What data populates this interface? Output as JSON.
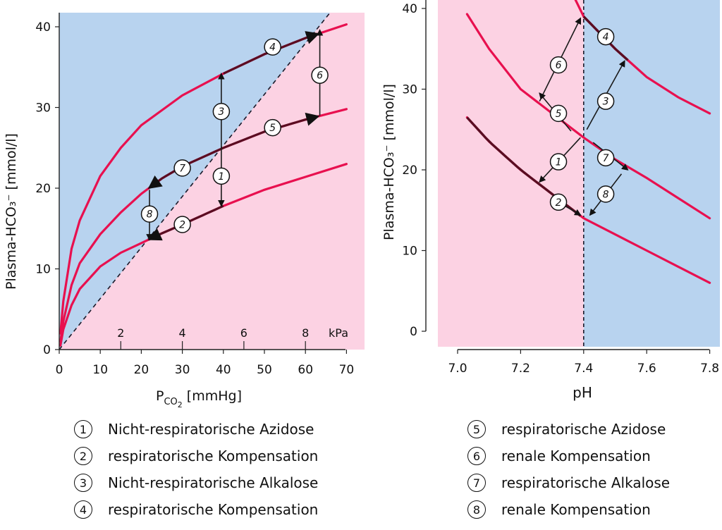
{
  "chart_data": [
    {
      "type": "line",
      "xlabel_main": "P",
      "xlabel_sub": "CO",
      "xlabel_subsub": "2",
      "xlabel_unit": "[mmHg]",
      "ylabel": "Plasma-HCO₃⁻ [mmol/l]",
      "xlim": [
        0,
        75
      ],
      "ylim": [
        0,
        41
      ],
      "x_ticks": [
        0,
        10,
        20,
        30,
        40,
        50,
        60,
        70
      ],
      "y_ticks": [
        0,
        10,
        20,
        30,
        40
      ],
      "kpa_ticks": [
        {
          "label": "2",
          "mmhg": 15
        },
        {
          "label": "4",
          "mmhg": 30
        },
        {
          "label": "6",
          "mmhg": 45
        },
        {
          "label": "8",
          "mmhg": 60
        }
      ],
      "kpa_unit": "kPa",
      "background": {
        "upper_region_color": "#b8d3ef",
        "lower_region_color": "#fcd2e3"
      },
      "isohydric_line": {
        "x": [
          0,
          66
        ],
        "y": [
          0,
          41
        ]
      },
      "series": [
        {
          "x": [
            0.3,
            1,
            3,
            5,
            10,
            15,
            20,
            30,
            40,
            50,
            60,
            70
          ],
          "y": [
            2,
            6,
            12.5,
            16,
            21.5,
            25,
            27.8,
            31.5,
            34.2,
            36.6,
            38.6,
            40.3
          ]
        },
        {
          "x": [
            0.3,
            1,
            3,
            5,
            10,
            15,
            20,
            25,
            30,
            40,
            50,
            60,
            70
          ],
          "y": [
            1,
            3.5,
            8,
            10.7,
            14.3,
            17,
            19.3,
            21.2,
            22.7,
            25,
            27,
            28.5,
            29.8
          ]
        },
        {
          "x": [
            0.3,
            1,
            3,
            5,
            10,
            15,
            20,
            25,
            30,
            40,
            50,
            60,
            70
          ],
          "y": [
            0.5,
            2.5,
            5.5,
            7.5,
            10.3,
            12,
            13.2,
            14.4,
            15.5,
            17.8,
            19.8,
            21.4,
            23
          ]
        }
      ],
      "points": [
        {
          "label": "1",
          "x": 39.5,
          "y": 21.5
        },
        {
          "label": "2",
          "x": 30,
          "y": 15.5
        },
        {
          "label": "3",
          "x": 39.5,
          "y": 29.5
        },
        {
          "label": "4",
          "x": 52,
          "y": 37.5
        },
        {
          "label": "5",
          "x": 52,
          "y": 27.5
        },
        {
          "label": "6",
          "x": 63.5,
          "y": 34
        },
        {
          "label": "7",
          "x": 30,
          "y": 22.5
        },
        {
          "label": "8",
          "x": 22,
          "y": 16.8
        }
      ]
    },
    {
      "type": "line",
      "xlabel": "pH",
      "ylabel": "Plasma-HCO₃⁻ [mmol/l]",
      "xlim": [
        6.95,
        7.83
      ],
      "ylim": [
        -2,
        41
      ],
      "x_ticks": [
        "7.0",
        "7.2",
        "7.4",
        "7.6",
        "7.8"
      ],
      "y_ticks": [
        0,
        10,
        20,
        30,
        40
      ],
      "background": {
        "left_region_color": "#fcd2e3",
        "right_region_color": "#b8d3ef",
        "split_ph": 7.4
      },
      "series": [
        {
          "x": [
            7.35,
            7.4,
            7.5,
            7.6,
            7.7,
            7.8
          ],
          "y": [
            43,
            39,
            35,
            31.5,
            29,
            27
          ]
        },
        {
          "x": [
            7.03,
            7.1,
            7.2,
            7.3,
            7.4,
            7.5,
            7.6,
            7.7,
            7.8
          ],
          "y": [
            39.3,
            35,
            30,
            27,
            24,
            21.3,
            19,
            16.5,
            14
          ]
        },
        {
          "x": [
            7.03,
            7.1,
            7.2,
            7.3,
            7.4,
            7.5,
            7.6,
            7.7,
            7.8
          ],
          "y": [
            26.5,
            23.5,
            20,
            17,
            14,
            12,
            10,
            8,
            6
          ]
        }
      ],
      "points": [
        {
          "label": "1",
          "x": 7.32,
          "y": 21
        },
        {
          "label": "2",
          "x": 7.32,
          "y": 16
        },
        {
          "label": "3",
          "x": 7.47,
          "y": 28.5
        },
        {
          "label": "4",
          "x": 7.47,
          "y": 36.5
        },
        {
          "label": "5",
          "x": 7.32,
          "y": 27
        },
        {
          "label": "6",
          "x": 7.32,
          "y": 33
        },
        {
          "label": "7",
          "x": 7.47,
          "y": 21.5
        },
        {
          "label": "8",
          "x": 7.47,
          "y": 17
        }
      ]
    }
  ],
  "legend": [
    {
      "num": "1",
      "text": "Nicht-respiratorische Azidose"
    },
    {
      "num": "2",
      "text": "respiratorische Kompensation"
    },
    {
      "num": "3",
      "text": "Nicht-respiratorische Alkalose"
    },
    {
      "num": "4",
      "text": "respiratorische Kompensation"
    },
    {
      "num": "5",
      "text": "respiratorische Azidose"
    },
    {
      "num": "6",
      "text": "renale Kompensation"
    },
    {
      "num": "7",
      "text": "respiratorische Alkalose"
    },
    {
      "num": "8",
      "text": "renale Kompensation"
    }
  ],
  "colors": {
    "curve": "#e8104f",
    "arrow": "#1a1a1a",
    "axis": "#222222",
    "text": "#111111"
  }
}
